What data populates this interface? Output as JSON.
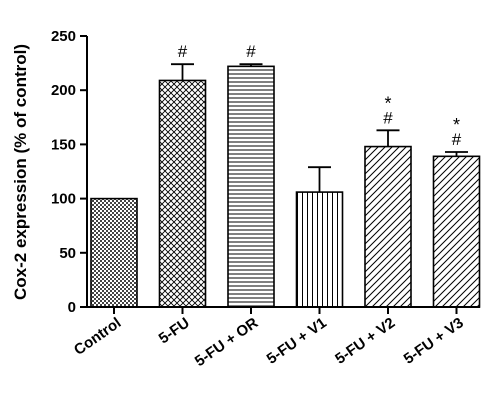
{
  "chart_data": {
    "type": "bar",
    "title": "",
    "xlabel": "",
    "ylabel": "Cox-2 expression (% of control)",
    "ylim": [
      0,
      250
    ],
    "yticks": [
      0,
      50,
      100,
      150,
      200,
      250
    ],
    "grid": false,
    "categories": [
      "Control",
      "5-FU",
      "5-FU + OR",
      "5-FU + V1",
      "5-FU + V2",
      "5-FU + V3"
    ],
    "values": [
      100,
      209,
      222,
      106,
      148,
      139
    ],
    "errors": [
      0,
      15,
      2,
      23,
      15,
      4
    ],
    "patterns": [
      "dots",
      "crosshatch",
      "horizontal",
      "vertical",
      "diagonal",
      "diagonal"
    ],
    "annotations": [
      [],
      [
        "#"
      ],
      [
        "#"
      ],
      [],
      [
        "*",
        "#"
      ],
      [
        "*",
        "#"
      ]
    ]
  }
}
